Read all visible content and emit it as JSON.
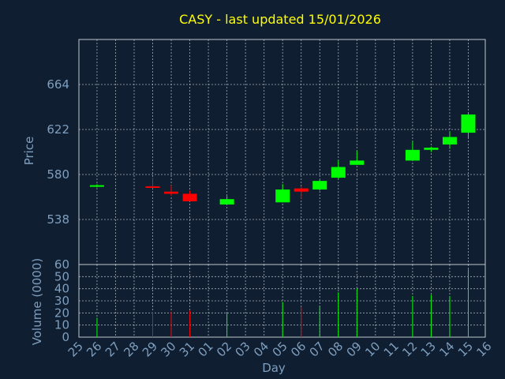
{
  "chart_data": {
    "type": "candlestick",
    "title": "CASY - last updated 15/01/2026",
    "ylabel_price": "Price",
    "ylabel_volume": "Volume (0000)",
    "xlabel": "Day",
    "colors": {
      "up": "#00ff00",
      "down": "#ff0000",
      "title": "#ffff00",
      "axis_text": "#7f9fbf",
      "background": "#0f1e30",
      "grid": "#c0c8d0"
    },
    "price_ylim": [
      496,
      706
    ],
    "price_ticks": [
      538,
      580,
      622,
      664
    ],
    "volume_ylim": [
      0,
      60
    ],
    "volume_ticks": [
      0,
      10,
      20,
      30,
      40,
      50,
      60
    ],
    "x_labels": [
      "25",
      "26",
      "27",
      "28",
      "29",
      "30",
      "31",
      "01",
      "02",
      "03",
      "04",
      "05",
      "06",
      "07",
      "08",
      "09",
      "10",
      "11",
      "12",
      "13",
      "14",
      "15",
      "16"
    ],
    "candles": [
      {
        "x": 1,
        "open": 569,
        "close": 570,
        "high": 571,
        "low": 568,
        "volume": 16
      },
      {
        "x": 4,
        "open": 569,
        "close": 568,
        "high": 577,
        "low": 567,
        "volume": 21
      },
      {
        "x": 5,
        "open": 564,
        "close": 562,
        "high": 570,
        "low": 560,
        "volume": 21
      },
      {
        "x": 6,
        "open": 562,
        "close": 555,
        "high": 565,
        "low": 555,
        "volume": 22
      },
      {
        "x": 8,
        "open": 552,
        "close": 557,
        "high": 560,
        "low": 552,
        "volume": 20
      },
      {
        "x": 11,
        "open": 554,
        "close": 566,
        "high": 571,
        "low": 554,
        "volume": 29
      },
      {
        "x": 12,
        "open": 567,
        "close": 564,
        "high": 569,
        "low": 557,
        "volume": 25
      },
      {
        "x": 13,
        "open": 566,
        "close": 574,
        "high": 575,
        "low": 565,
        "volume": 26
      },
      {
        "x": 14,
        "open": 577,
        "close": 587,
        "high": 593,
        "low": 576,
        "volume": 37
      },
      {
        "x": 15,
        "open": 589,
        "close": 593,
        "high": 602,
        "low": 589,
        "volume": 40
      },
      {
        "x": 18,
        "open": 593,
        "close": 603,
        "high": 611,
        "low": 593,
        "volume": 34
      },
      {
        "x": 19,
        "open": 603,
        "close": 605,
        "high": 606,
        "low": 601,
        "volume": 35
      },
      {
        "x": 20,
        "open": 608,
        "close": 615,
        "high": 620,
        "low": 604,
        "volume": 34
      },
      {
        "x": 21,
        "open": 619,
        "close": 636,
        "high": 638,
        "low": 614,
        "volume": 56
      }
    ]
  }
}
